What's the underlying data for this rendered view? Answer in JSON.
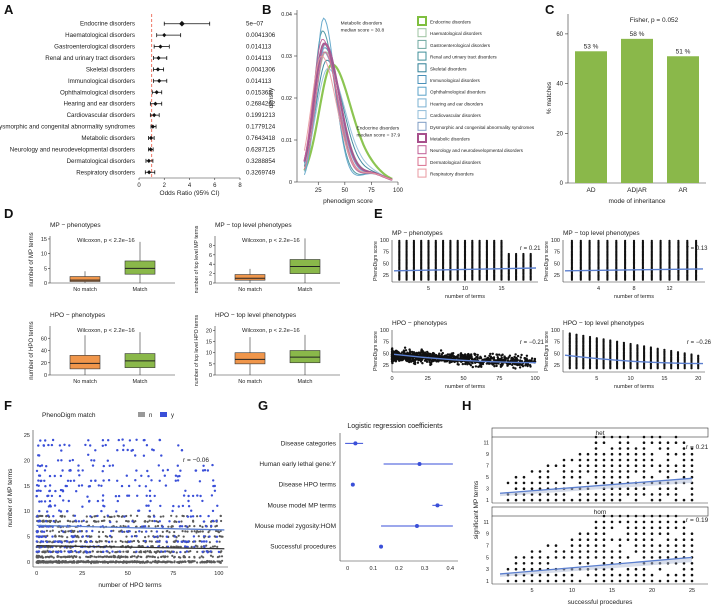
{
  "colors": {
    "green": "#8ab84a",
    "orange": "#f0964b",
    "blue": "#3a4fd8",
    "bluefit": "#5b7fcf",
    "red": "#ee7766",
    "grey": "#4a4a4a",
    "mptop": "#6fa84e"
  },
  "panel_letters": [
    "A",
    "B",
    "C",
    "D",
    "E",
    "F",
    "G",
    "H"
  ],
  "chart_data": [
    {
      "id": "A",
      "type": "forest",
      "xlabel": "Odds Ratio (95% CI)",
      "xlim": [
        0,
        8
      ],
      "xticks": [
        0,
        2,
        4,
        6,
        8
      ],
      "reference_line": 1,
      "rows": [
        {
          "label": "Endocrine disorders",
          "or": 3.4,
          "lo": 2.0,
          "hi": 5.6,
          "p": "5e−07"
        },
        {
          "label": "Haematological disorders",
          "or": 2.0,
          "lo": 1.4,
          "hi": 3.3,
          "p": "0.0041306"
        },
        {
          "label": "Gastroenterological disorders",
          "or": 1.7,
          "lo": 1.2,
          "hi": 2.4,
          "p": "0.014113"
        },
        {
          "label": "Renal and urinary tract disorders",
          "or": 1.55,
          "lo": 1.15,
          "hi": 2.2,
          "p": "0.014113"
        },
        {
          "label": "Skeletal disorders",
          "or": 1.5,
          "lo": 1.15,
          "hi": 1.95,
          "p": "0.0041306"
        },
        {
          "label": "Immunological disorders",
          "or": 1.6,
          "lo": 1.15,
          "hi": 2.2,
          "p": "0.014113"
        },
        {
          "label": "Ophthalmological disorders",
          "or": 1.4,
          "lo": 1.05,
          "hi": 1.8,
          "p": "0.015362"
        },
        {
          "label": "Hearing and ear disorders",
          "or": 1.3,
          "lo": 0.9,
          "hi": 1.8,
          "p": "0.2684262"
        },
        {
          "label": "Cardiovascular disorders",
          "or": 1.2,
          "lo": 0.9,
          "hi": 1.6,
          "p": "0.1991213"
        },
        {
          "label": "Dysmorphic and congenital abnormality syndromes",
          "or": 1.1,
          "lo": 0.95,
          "hi": 1.35,
          "p": "0.1779124"
        },
        {
          "label": "Metabolic disorders",
          "or": 0.95,
          "lo": 0.75,
          "hi": 1.2,
          "p": "0.7643418"
        },
        {
          "label": "Neurology and neurodevelopmental disorders",
          "or": 0.92,
          "lo": 0.75,
          "hi": 1.12,
          "p": "0.6287125"
        },
        {
          "label": "Dermatological disorders",
          "or": 0.78,
          "lo": 0.55,
          "hi": 1.1,
          "p": "0.3288854"
        },
        {
          "label": "Respiratory disorders",
          "or": 0.8,
          "lo": 0.5,
          "hi": 1.25,
          "p": "0.3269749"
        }
      ]
    },
    {
      "id": "B",
      "type": "density",
      "xlabel": "phenodigm score",
      "ylabel": "density",
      "xlim": [
        5,
        100
      ],
      "ylim": [
        0,
        0.04
      ],
      "xticks": [
        25,
        50,
        75,
        100
      ],
      "yticks": [
        0,
        0.01,
        0.02,
        0.03,
        0.04
      ],
      "annotations": [
        {
          "text": [
            "Metabolic disorders",
            "median score = 30.8"
          ],
          "x": 46,
          "y": 0.0375
        },
        {
          "text": [
            "Endocrine disorders",
            "median score = 37.9"
          ],
          "x": 61,
          "y": 0.0125
        }
      ],
      "legend": [
        "Endocrine disorders",
        "Haematological disorders",
        "Gastroenterological disorders",
        "Renal and urinary tract disorders",
        "Skeletal disorders",
        "Immunological disorders",
        "Ophthalmological disorders",
        "Hearing and ear disorders",
        "Cardiovascular disorders",
        "Dysmorphic and congenital abnormality syndromes",
        "Metabolic disorders",
        "Neurology and neurodevelopmental disorders",
        "Dermatological disorders",
        "Respiratory disorders"
      ],
      "legend_colors": [
        "#7fbf3f",
        "#9cc3a0",
        "#6fa8a0",
        "#3f8f9a",
        "#2f7f96",
        "#4a90b8",
        "#5aa2c8",
        "#7ab0d2",
        "#90bcd8",
        "#7f9cc4",
        "#a8508c",
        "#c05e96",
        "#d86f8e",
        "#e89aa0"
      ],
      "series": [
        {
          "name": "Endocrine disorders",
          "color": "#7fbf3f",
          "width": 2.2,
          "peak": 37.9,
          "sd": 15,
          "h": 0.028
        },
        {
          "name": "Haematological disorders",
          "color": "#9cc3a0",
          "width": 1,
          "peak": 32,
          "sd": 12,
          "h": 0.031
        },
        {
          "name": "Gastroenterological disorders",
          "color": "#6fa8a0",
          "width": 1,
          "peak": 30,
          "sd": 11,
          "h": 0.033
        },
        {
          "name": "Renal and urinary tract disorders",
          "color": "#3f8f9a",
          "width": 1,
          "peak": 29,
          "sd": 10,
          "h": 0.036
        },
        {
          "name": "Skeletal disorders",
          "color": "#2f7f96",
          "width": 1,
          "peak": 33,
          "sd": 13,
          "h": 0.029
        },
        {
          "name": "Immunological disorders",
          "color": "#4a90b8",
          "width": 1,
          "peak": 31,
          "sd": 12,
          "h": 0.032
        },
        {
          "name": "Ophthalmological disorders",
          "color": "#5aa2c8",
          "width": 1,
          "peak": 30,
          "sd": 9,
          "h": 0.039
        },
        {
          "name": "Hearing and ear disorders",
          "color": "#7ab0d2",
          "width": 1,
          "peak": 32,
          "sd": 11,
          "h": 0.033
        },
        {
          "name": "Cardiovascular disorders",
          "color": "#90bcd8",
          "width": 1,
          "peak": 34,
          "sd": 14,
          "h": 0.027
        },
        {
          "name": "Dysmorphic and congenital abnormality syndromes",
          "color": "#7f9cc4",
          "width": 1,
          "peak": 30,
          "sd": 12,
          "h": 0.031
        },
        {
          "name": "Metabolic disorders",
          "color": "#a8508c",
          "width": 2.2,
          "peak": 30.8,
          "sd": 12,
          "h": 0.033
        },
        {
          "name": "Neurology and neurodevelopmental disorders",
          "color": "#c05e96",
          "width": 1,
          "peak": 29,
          "sd": 11,
          "h": 0.034
        },
        {
          "name": "Dermatological disorders",
          "color": "#d86f8e",
          "width": 1,
          "peak": 31,
          "sd": 11,
          "h": 0.031
        },
        {
          "name": "Respiratory disorders",
          "color": "#e89aa0",
          "width": 1,
          "peak": 28,
          "sd": 12,
          "h": 0.03
        }
      ]
    },
    {
      "id": "C",
      "type": "bar",
      "title": "Fisher, p = 0.052",
      "xlabel": "mode of inheritance",
      "ylabel": "% matches",
      "categories": [
        "AD",
        "AD|AR",
        "AR"
      ],
      "values": [
        53,
        58,
        51
      ],
      "labels": [
        "53 %",
        "58 %",
        "51 %"
      ],
      "ylim": [
        0,
        68
      ],
      "yticks": [
        0,
        20,
        40,
        60
      ]
    },
    {
      "id": "D",
      "type": "boxplot",
      "panels": [
        {
          "title": "MP − phenotypes",
          "ylabel": "number of MP terms",
          "stat": "Wilcoxon, p < 2.2e−16",
          "ylim": [
            0,
            16
          ],
          "yticks": [
            0,
            5,
            10,
            15
          ],
          "boxes": [
            {
              "cat": "No match",
              "q1": 0.5,
              "med": 1,
              "q3": 2.2,
              "lo": 0,
              "hi": 4
            },
            {
              "cat": "Match",
              "q1": 3,
              "med": 5,
              "q3": 7.5,
              "lo": 0,
              "hi": 14
            }
          ]
        },
        {
          "title": "MP − top level phenotypes",
          "ylabel": "number of top level MP terms",
          "stat": "Wilcoxon, p < 2.2e−16",
          "ylim": [
            0,
            10
          ],
          "yticks": [
            0,
            2,
            4,
            6,
            8
          ],
          "boxes": [
            {
              "cat": "No match",
              "q1": 0.6,
              "med": 1,
              "q3": 1.8,
              "lo": 0,
              "hi": 3
            },
            {
              "cat": "Match",
              "q1": 2,
              "med": 3.5,
              "q3": 5,
              "lo": 0,
              "hi": 9.5
            }
          ]
        },
        {
          "title": "HPO − phenotypes",
          "ylabel": "number of HPO terms",
          "stat": "Wilcoxon, p < 2.2e−16",
          "ylim": [
            0,
            80
          ],
          "yticks": [
            0,
            20,
            40,
            60
          ],
          "boxes": [
            {
              "cat": "No match",
              "q1": 10,
              "med": 19,
              "q3": 32,
              "lo": 0,
              "hi": 65
            },
            {
              "cat": "Match",
              "q1": 12,
              "med": 23,
              "q3": 35,
              "lo": 0,
              "hi": 70
            }
          ]
        },
        {
          "title": "HPO − top level phenotypes",
          "ylabel": "number of top level HPO terms",
          "stat": "Wilcoxon, p < 2.2e−16",
          "ylim": [
            0,
            22
          ],
          "yticks": [
            0,
            5,
            10,
            15,
            20
          ],
          "boxes": [
            {
              "cat": "No match",
              "q1": 5,
              "med": 7,
              "q3": 10,
              "lo": 0,
              "hi": 17
            },
            {
              "cat": "Match",
              "q1": 5.5,
              "med": 8,
              "q3": 11,
              "lo": 0,
              "hi": 18
            }
          ]
        }
      ],
      "xcats": [
        "No match",
        "Match"
      ]
    },
    {
      "id": "E",
      "type": "scatter",
      "ylabel": "PhenoDigm score",
      "xlabel": "number of terms",
      "panels": [
        {
          "title": "MP − phenotypes",
          "r": "r = 0.21",
          "xlim": [
            0,
            20
          ],
          "xticks": [
            5,
            10,
            15
          ],
          "ylim": [
            10,
            100
          ],
          "yticks": [
            25,
            50,
            75,
            100
          ],
          "xmax": 19,
          "fit": [
            34,
            40
          ]
        },
        {
          "title": "MP − top level phenotypes",
          "r": "r = 0.13",
          "xlim": [
            0,
            16
          ],
          "xticks": [
            4,
            8,
            12
          ],
          "ylim": [
            10,
            100
          ],
          "yticks": [
            25,
            50,
            75,
            100
          ],
          "xmax": 15,
          "fit": [
            34,
            38
          ]
        },
        {
          "title": "HPO − phenotypes",
          "r": "r = −0.21",
          "xlim": [
            0,
            102
          ],
          "xticks": [
            0,
            25,
            50,
            75,
            100
          ],
          "ylim": [
            10,
            100
          ],
          "yticks": [
            25,
            50,
            75,
            100
          ],
          "xmax": 100,
          "fit": [
            48,
            30
          ],
          "dense": true
        },
        {
          "title": "HPO − top level phenotypes",
          "r": "r = −0.26",
          "xlim": [
            0,
            21
          ],
          "xticks": [
            5,
            10,
            15,
            20
          ],
          "ylim": [
            10,
            100
          ],
          "yticks": [
            25,
            50,
            75,
            100
          ],
          "xmax": 20,
          "fit": [
            46,
            28
          ]
        }
      ]
    },
    {
      "id": "F",
      "type": "scatter",
      "xlabel": "number of HPO terms",
      "ylabel": "number of MP terms",
      "r": "r = −0.06",
      "legend_title": "PhenoDigm match",
      "legend_items": [
        "n",
        "y"
      ],
      "xlim": [
        -2,
        105
      ],
      "ylim": [
        -1,
        26
      ],
      "xticks": [
        0,
        25,
        50,
        75,
        100
      ],
      "yticks": [
        0,
        5,
        10,
        15,
        20,
        25
      ]
    },
    {
      "id": "G",
      "type": "coefficient",
      "title": "Logistic regression coefficients",
      "xlim": [
        -0.03,
        0.43
      ],
      "xticks": [
        0.0,
        0.1,
        0.2,
        0.3,
        0.4
      ],
      "rows": [
        {
          "label": "Disease categories",
          "est": 0.03,
          "lo": -0.01,
          "hi": 0.06
        },
        {
          "label": "Human early lethal gene:Y",
          "est": 0.28,
          "lo": 0.14,
          "hi": 0.41
        },
        {
          "label": "Disease HPO terms",
          "est": 0.02,
          "lo": 0.015,
          "hi": 0.025
        },
        {
          "label": "Mouse model MP terms",
          "est": 0.35,
          "lo": 0.33,
          "hi": 0.37
        },
        {
          "label": "Mouse model zygosity:HOM",
          "est": 0.27,
          "lo": 0.13,
          "hi": 0.41
        },
        {
          "label": "Successful procedures",
          "est": 0.13,
          "lo": 0.125,
          "hi": 0.135
        }
      ]
    },
    {
      "id": "H",
      "type": "scatter",
      "xlabel": "successful procedures",
      "ylabel": "significant MP terms",
      "facets": [
        {
          "title": "het",
          "r": "r = 0.21",
          "fit": [
            2.2,
            4.8
          ]
        },
        {
          "title": "hom",
          "r": "r = 0.19",
          "fit": [
            2.2,
            5.0
          ]
        }
      ],
      "xlim": [
        0,
        27
      ],
      "ylim": [
        0.5,
        12
      ],
      "xticks": [
        5,
        10,
        15,
        20,
        25
      ],
      "yticks": [
        1,
        3,
        5,
        7,
        9,
        11
      ]
    }
  ]
}
